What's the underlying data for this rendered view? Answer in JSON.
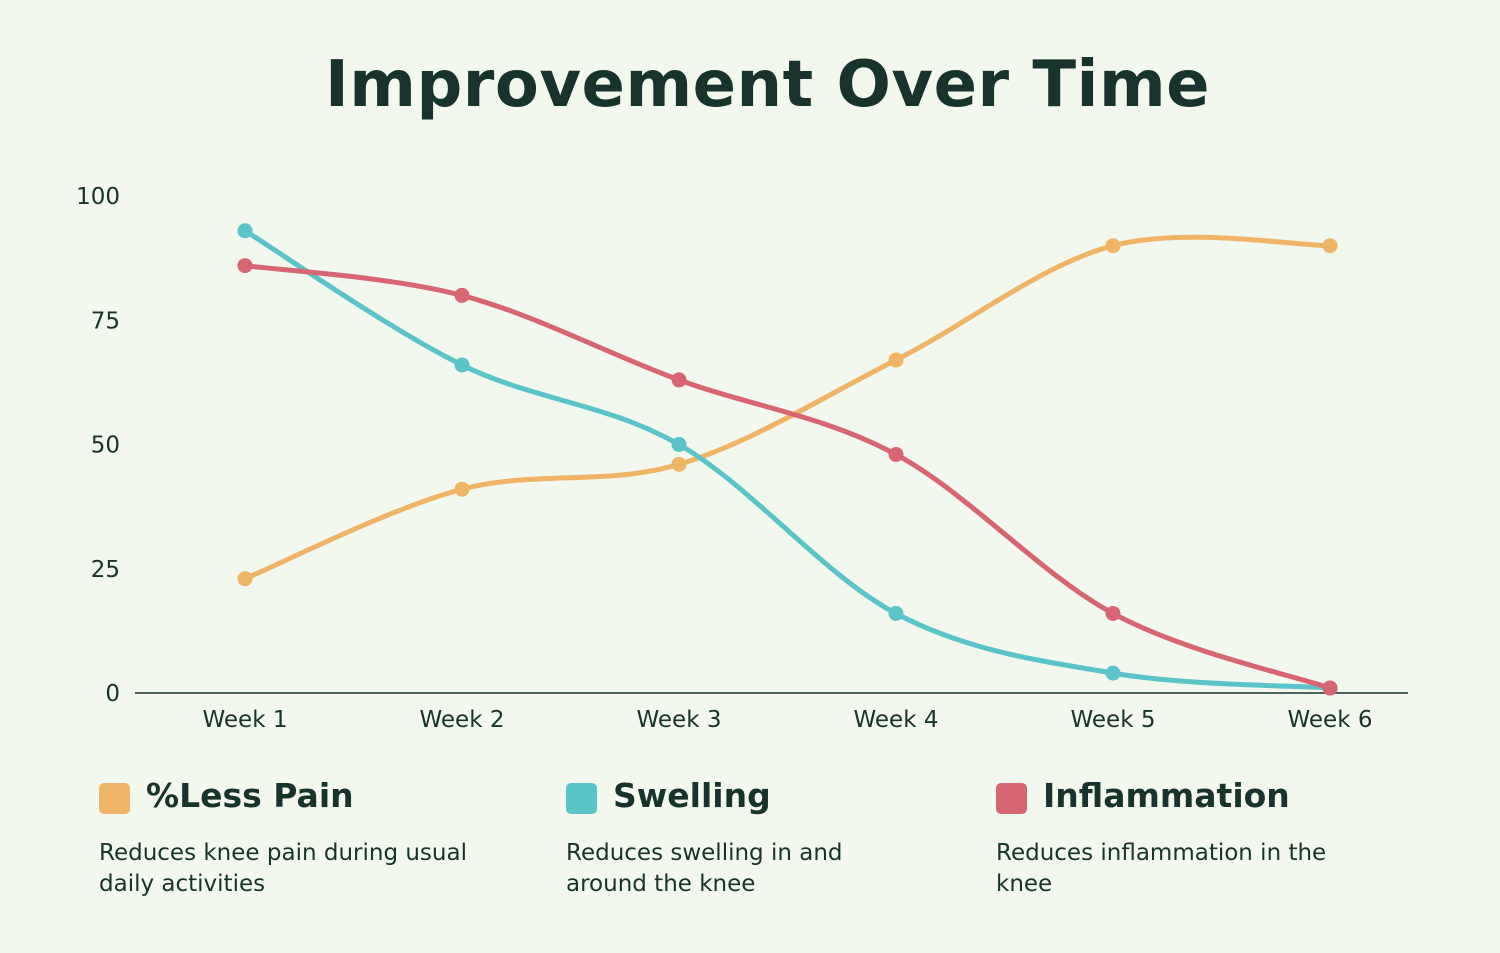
{
  "chart_data": {
    "type": "line",
    "title": "Improvement Over Time",
    "xlabel": "",
    "ylabel": "",
    "categories": [
      "Week 1",
      "Week 2",
      "Week 3",
      "Week 4",
      "Week 5",
      "Week 6"
    ],
    "yticks": [
      "0",
      "25",
      "50",
      "75",
      "100"
    ],
    "ylim": [
      0,
      100
    ],
    "grid": false,
    "legend_position": "bottom",
    "series": [
      {
        "name": "%Less Pain",
        "description": "Reduces knee pain during usual daily activities",
        "color": "#F0B467",
        "values": [
          23,
          41,
          46,
          67,
          90,
          90
        ]
      },
      {
        "name": "Swelling",
        "description": "Reduces swelling in and around the knee",
        "color": "#5BC4C9",
        "values": [
          93,
          66,
          50,
          16,
          4,
          1
        ]
      },
      {
        "name": "Inflammation",
        "description": "Reduces inflammation in the knee",
        "color": "#D76572",
        "values": [
          86,
          80,
          63,
          48,
          16,
          1
        ]
      }
    ]
  }
}
